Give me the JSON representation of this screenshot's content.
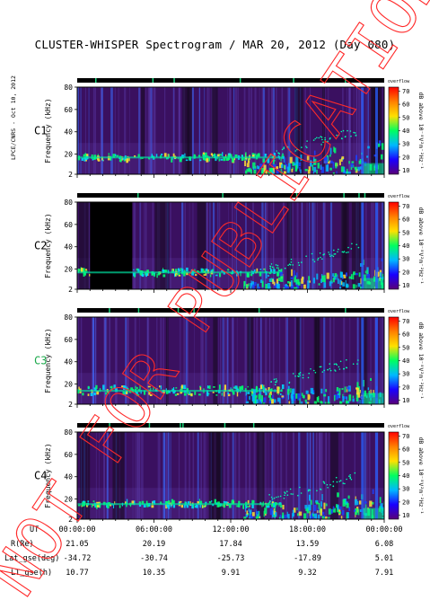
{
  "title": "CLUSTER-WHISPER Spectrogram / MAR 20, 2012 (Day 080)",
  "credit": "LPCE/CNRS - Oct 10, 2012",
  "watermark": "NOT FOR PUBLICATION",
  "frequency_axis": {
    "label": "Frequency (kHz)",
    "ticks": [
      "2",
      "20",
      "40",
      "60",
      "80"
    ]
  },
  "colorbar": {
    "top_label": "overflow",
    "label": "dB above 10⁻⁸V²m⁻²Hz⁻¹",
    "ticks": [
      "10",
      "20",
      "30",
      "40",
      "50",
      "60",
      "70"
    ]
  },
  "panels": [
    {
      "name": "C1",
      "label_color": "#000000"
    },
    {
      "name": "C2",
      "label_color": "#000000"
    },
    {
      "name": "C3",
      "label_color": "#1aa84a"
    },
    {
      "name": "C4",
      "label_color": "#000000"
    }
  ],
  "ephemeris": {
    "row_labels": [
      "UT",
      "R(Re)",
      "Lat_gse(deg)",
      "LT_gse(h)"
    ],
    "ut": [
      "00:00:00",
      "06:00:00",
      "12:00:00",
      "18:00:00",
      "00:00:00"
    ],
    "r_re": [
      "21.05",
      "20.19",
      "17.84",
      "13.59",
      "6.08"
    ],
    "lat_gse": [
      "-34.72",
      "-30.74",
      "-25.73",
      "-17.89",
      "5.01"
    ],
    "lt_gse": [
      "10.77",
      "10.35",
      "9.91",
      "9.32",
      "7.91"
    ]
  },
  "chart_data": {
    "type": "heatmap",
    "title": "CLUSTER-WHISPER Spectrogram / MAR 20, 2012 (Day 080)",
    "xlabel": "UT",
    "ylabel": "Frequency (kHz)",
    "x_range": [
      "00:00:00",
      "24:00:00"
    ],
    "x_ticks": [
      "00:00:00",
      "06:00:00",
      "12:00:00",
      "18:00:00",
      "00:00:00"
    ],
    "ylim": [
      2,
      80
    ],
    "y_ticks": [
      2,
      20,
      40,
      60,
      80
    ],
    "color_scale": {
      "label": "dB above 10⁻⁸V²m⁻²Hz⁻¹",
      "min": 10,
      "max": 70,
      "colors": [
        "#5a0078",
        "#1a00ff",
        "#00b8ff",
        "#00ff60",
        "#ffe000",
        "#ff8000",
        "#ff0000"
      ]
    },
    "panels": [
      {
        "name": "C1",
        "baseline_band_khz": [
          14,
          20
        ],
        "no_data_intervals_h": []
      },
      {
        "name": "C2",
        "baseline_band_khz": [
          14,
          20
        ],
        "no_data_intervals_h": [
          [
            1.0,
            4.3
          ]
        ]
      },
      {
        "name": "C3",
        "baseline_band_khz": [
          10,
          18
        ],
        "no_data_intervals_h": []
      },
      {
        "name": "C4",
        "baseline_band_khz": [
          13,
          18
        ],
        "no_data_intervals_h": []
      }
    ],
    "grid": false
  }
}
